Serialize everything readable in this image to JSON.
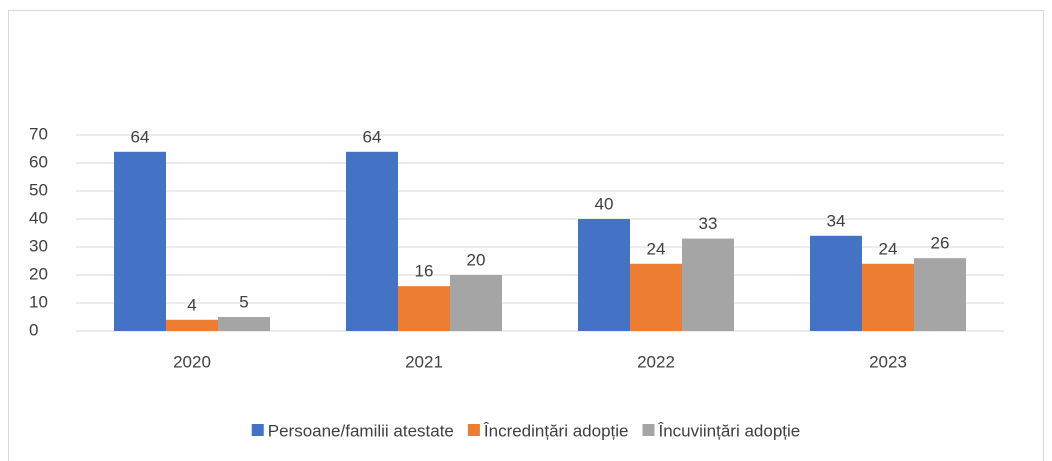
{
  "chart_data": {
    "type": "bar",
    "categories": [
      "2020",
      "2021",
      "2022",
      "2023"
    ],
    "series": [
      {
        "name": "Persoane/familii atestate",
        "color": "#4472c4",
        "values": [
          64,
          64,
          40,
          34
        ]
      },
      {
        "name": "Încredințări adopție",
        "color": "#ed7d31",
        "values": [
          4,
          16,
          24,
          24
        ]
      },
      {
        "name": "Încuviințări adopție",
        "color": "#a5a5a5",
        "values": [
          5,
          20,
          33,
          26
        ]
      }
    ],
    "ylim": [
      0,
      70
    ],
    "yticks": [
      0,
      10,
      20,
      30,
      40,
      50,
      60,
      70
    ],
    "grid": true,
    "legend": "bottom"
  }
}
